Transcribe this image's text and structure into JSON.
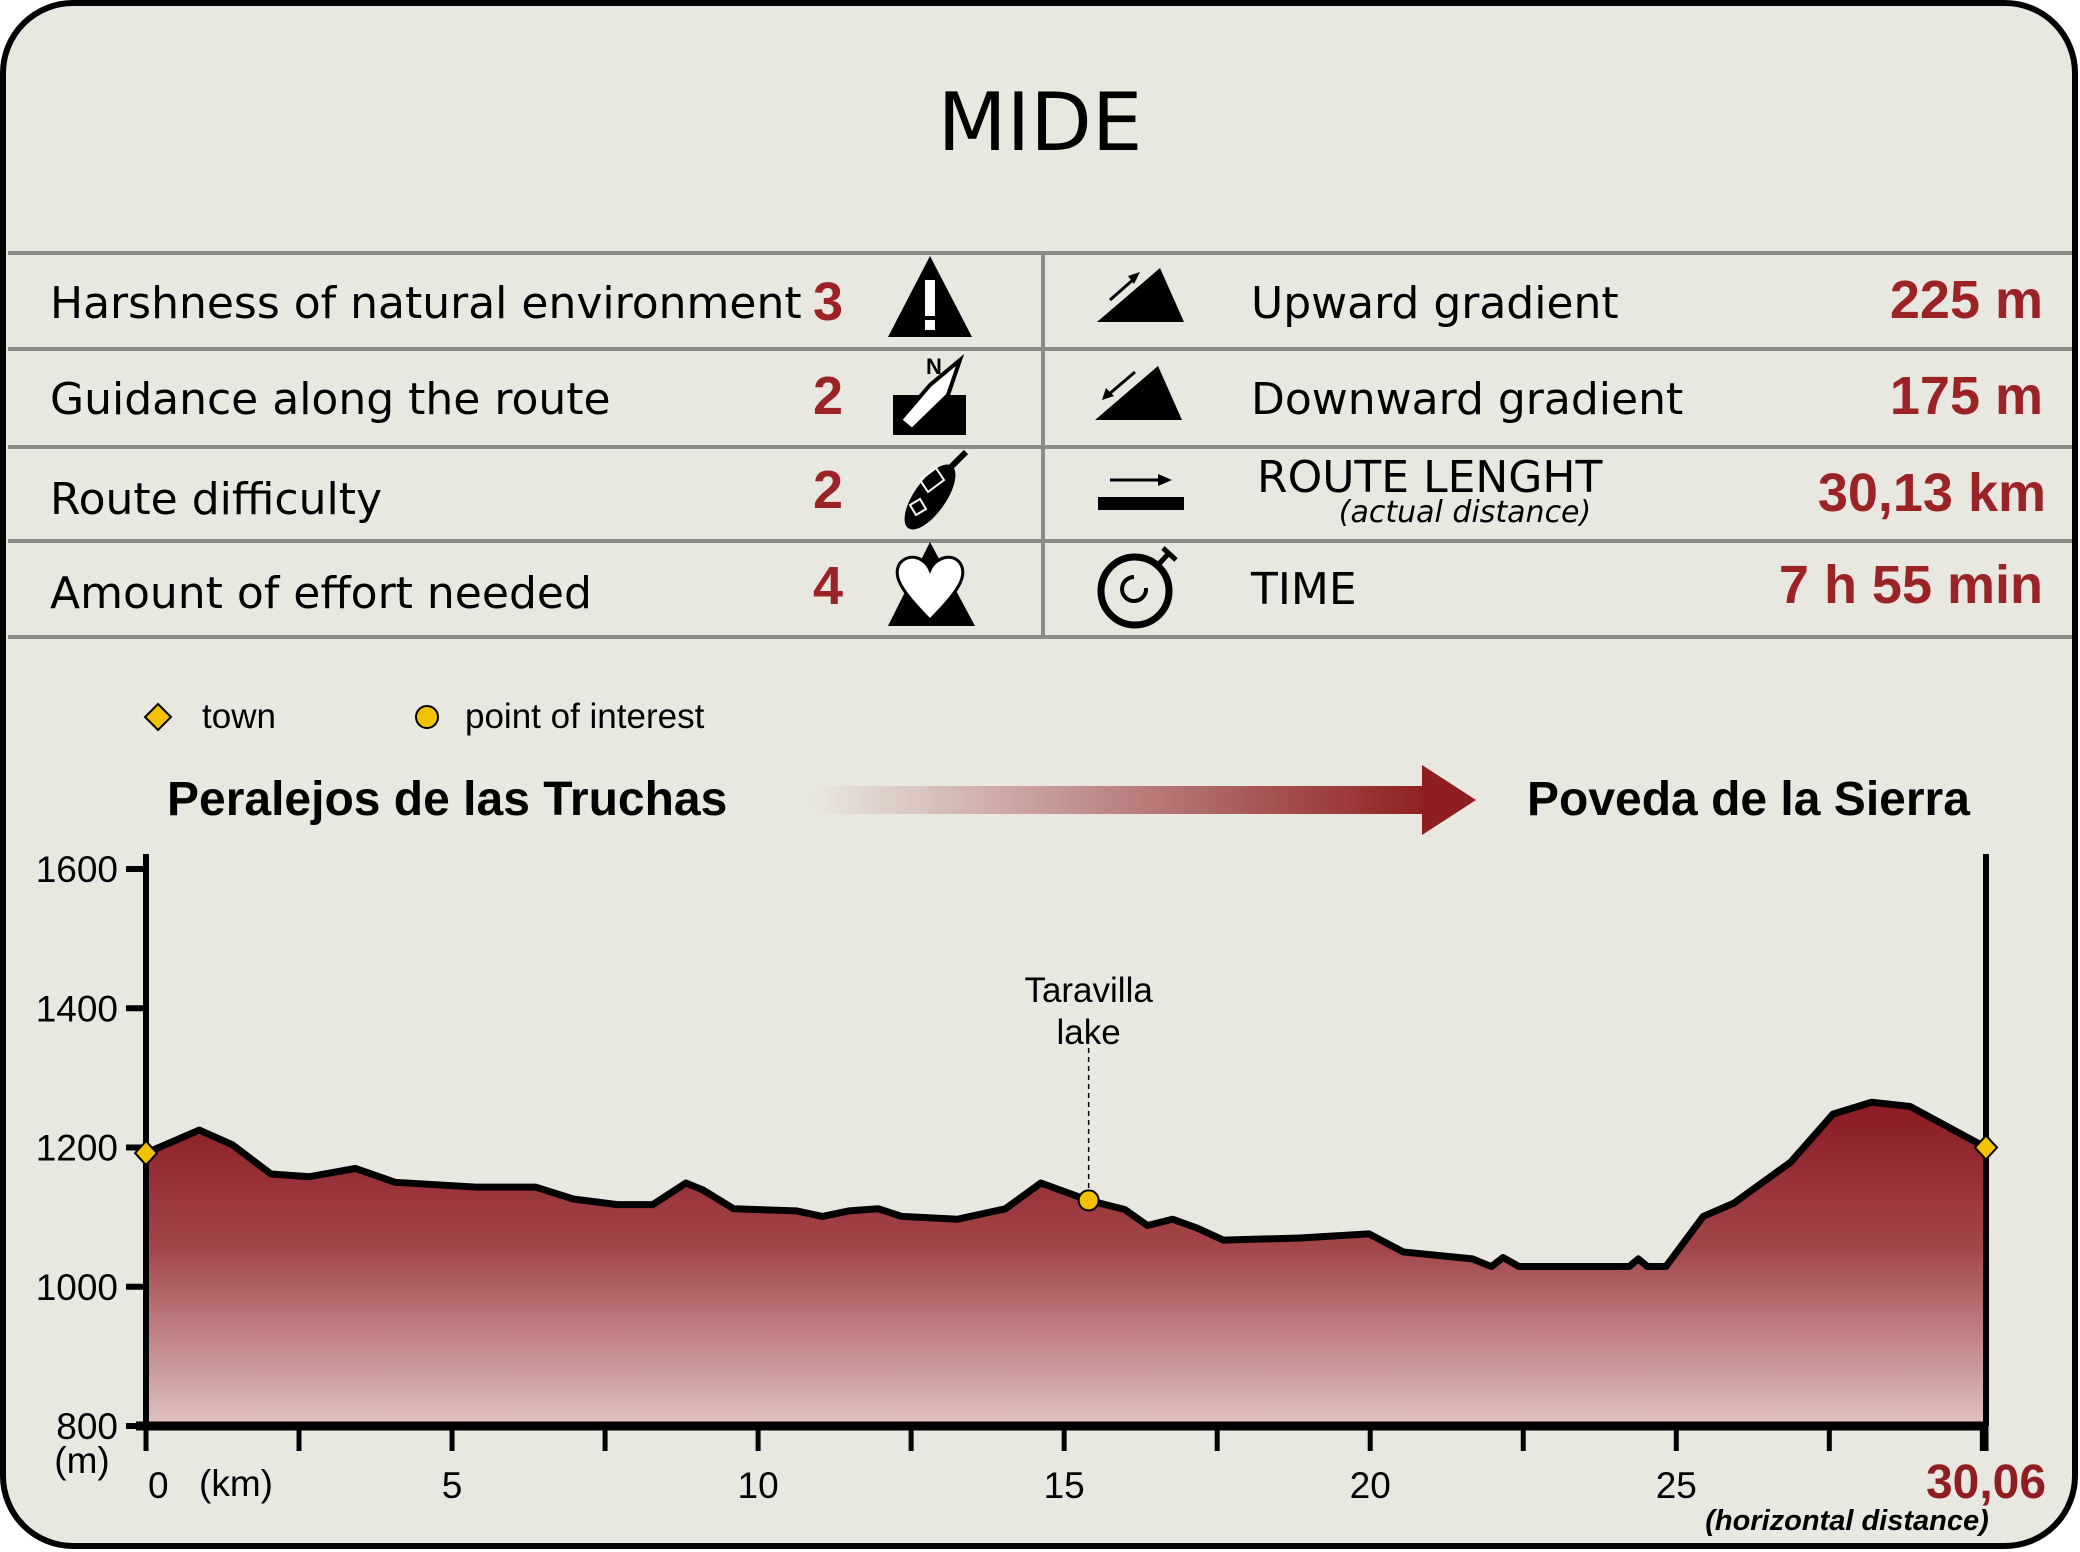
{
  "title": "MIDE",
  "colors": {
    "accent": "#9b2326",
    "background": "#e9e8e0",
    "town": "#f2c200",
    "poi": "#f2c200",
    "profile_top": "#8a1a22",
    "profile_bottom": "#e0c2c2"
  },
  "mide": [
    {
      "label": "Harshness of natural environment",
      "value": "3",
      "icon": "mountain-exclamation-icon"
    },
    {
      "label": "Guidance along the route",
      "value": "2",
      "icon": "compass-sign-icon"
    },
    {
      "label": "Route difficulty",
      "value": "2",
      "icon": "boot-sole-icon"
    },
    {
      "label": "Amount of effort needed",
      "value": "4",
      "icon": "heart-mountain-icon"
    }
  ],
  "stats": [
    {
      "label": "Upward gradient",
      "value": "225 m",
      "icon": "upward-gradient-icon"
    },
    {
      "label": "Downward gradient",
      "value": "175 m",
      "icon": "downward-gradient-icon"
    },
    {
      "label": "ROUTE LENGHT",
      "sublabel": "(actual distance)",
      "value": "30,13 km",
      "icon": "route-length-icon"
    },
    {
      "label": "TIME",
      "value": "7 h 55 min",
      "icon": "stopwatch-icon"
    }
  ],
  "legend": {
    "town": "town",
    "poi": "point of interest"
  },
  "route": {
    "start": "Peralejos de las Truchas",
    "end": "Poveda de la Sierra"
  },
  "chart_data": {
    "type": "area",
    "xlabel": "(km)",
    "ylabel": "(m)",
    "xlim": [
      0,
      30.06
    ],
    "ylim": [
      800,
      1600
    ],
    "x_ticks": [
      0,
      5,
      10,
      15,
      20,
      25
    ],
    "x_minor_step": 2.5,
    "y_ticks": [
      800,
      1000,
      1200,
      1400,
      1600
    ],
    "x_end_label": "30,06",
    "x_end_note": "(horizontal distance)",
    "grid": false,
    "points": [
      [
        0,
        1192
      ],
      [
        0.87,
        1225
      ],
      [
        1.41,
        1204
      ],
      [
        2.04,
        1162
      ],
      [
        2.67,
        1158
      ],
      [
        3.42,
        1170
      ],
      [
        4.07,
        1150
      ],
      [
        5.42,
        1143
      ],
      [
        6.37,
        1143
      ],
      [
        6.98,
        1126
      ],
      [
        7.7,
        1118
      ],
      [
        8.28,
        1118
      ],
      [
        8.82,
        1149
      ],
      [
        9.1,
        1139
      ],
      [
        9.6,
        1112
      ],
      [
        10.62,
        1109
      ],
      [
        11.05,
        1101
      ],
      [
        11.49,
        1109
      ],
      [
        11.96,
        1112
      ],
      [
        12.35,
        1101
      ],
      [
        13.26,
        1097
      ],
      [
        14.04,
        1112
      ],
      [
        14.62,
        1149
      ],
      [
        15.4,
        1124
      ],
      [
        15.99,
        1111
      ],
      [
        16.36,
        1088
      ],
      [
        16.77,
        1097
      ],
      [
        17.18,
        1084
      ],
      [
        17.6,
        1067
      ],
      [
        18.85,
        1070
      ],
      [
        19.98,
        1076
      ],
      [
        20.54,
        1050
      ],
      [
        21.67,
        1040
      ],
      [
        21.98,
        1029
      ],
      [
        22.17,
        1042
      ],
      [
        22.43,
        1029
      ],
      [
        24.23,
        1029
      ],
      [
        24.38,
        1040
      ],
      [
        24.53,
        1029
      ],
      [
        24.83,
        1029
      ],
      [
        25.44,
        1101
      ],
      [
        25.94,
        1120
      ],
      [
        26.87,
        1179
      ],
      [
        27.56,
        1248
      ],
      [
        28.19,
        1265
      ],
      [
        28.82,
        1259
      ],
      [
        30.06,
        1200
      ]
    ],
    "towns": [
      {
        "x": 0,
        "y": 1192
      },
      {
        "x": 30.06,
        "y": 1200
      }
    ],
    "pois": [
      {
        "x": 15.4,
        "y": 1124,
        "label_lines": [
          "Taravilla",
          "lake"
        ]
      }
    ]
  }
}
